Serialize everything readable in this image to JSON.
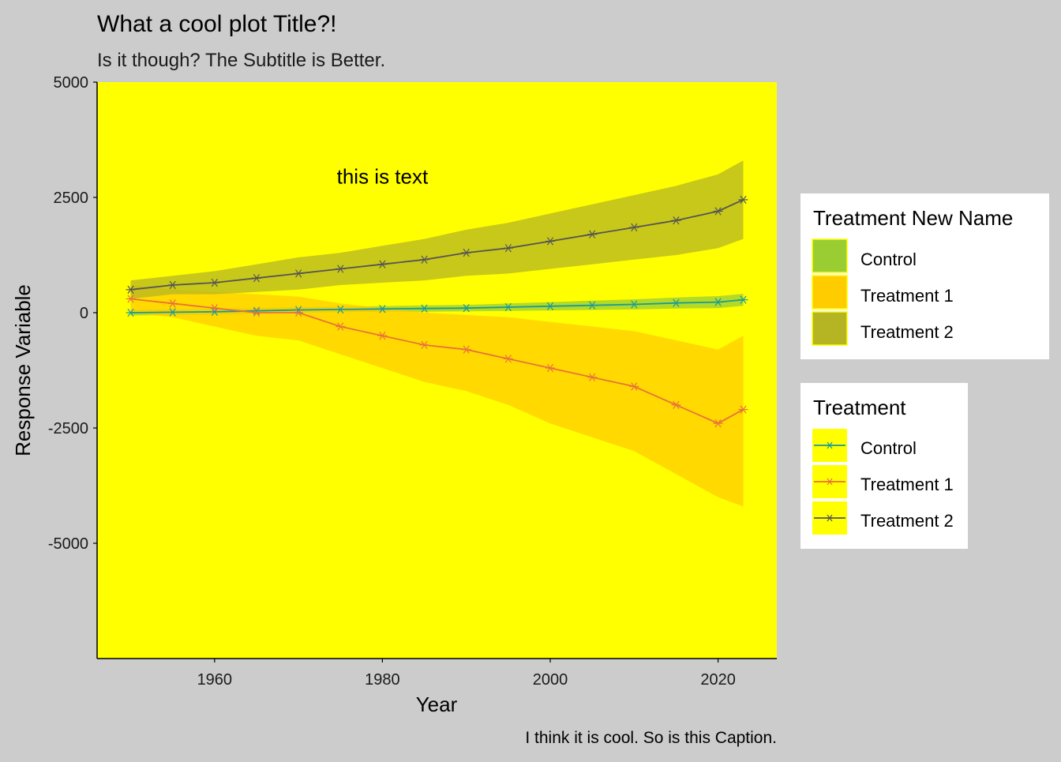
{
  "chart_data": {
    "type": "line",
    "title": "What a cool plot Title?!",
    "subtitle": "Is it though? The Subtitle is Better.",
    "caption": "I think it is cool. So is this Caption.",
    "xlabel": "Year",
    "ylabel": "Response Variable",
    "annotation": {
      "text": "this is text",
      "x": 1980,
      "y": 2950
    },
    "xlim": [
      1946,
      2027
    ],
    "ylim": [
      -7500,
      5000
    ],
    "xticks": [
      1960,
      1980,
      2000,
      2020
    ],
    "yticks": [
      5000,
      2500,
      0,
      -2500,
      -5000
    ],
    "x": [
      1950,
      1955,
      1960,
      1965,
      1970,
      1975,
      1980,
      1985,
      1990,
      1995,
      2000,
      2005,
      2010,
      2015,
      2020,
      2023
    ],
    "series": [
      {
        "name": "Control",
        "line_color": "#1a9a9a",
        "fill_color": "#9acd32",
        "values": [
          0,
          10,
          20,
          40,
          60,
          70,
          80,
          90,
          100,
          120,
          140,
          160,
          180,
          210,
          230,
          280
        ],
        "lower": [
          -60,
          -50,
          -40,
          -20,
          0,
          10,
          20,
          20,
          30,
          40,
          50,
          60,
          70,
          90,
          100,
          150
        ],
        "upper": [
          60,
          70,
          80,
          100,
          120,
          130,
          140,
          160,
          170,
          200,
          230,
          260,
          290,
          330,
          360,
          410
        ]
      },
      {
        "name": "Treatment 1",
        "line_color": "#e8733a",
        "fill_color": "#ffcc00",
        "values": [
          300,
          200,
          100,
          0,
          0,
          -300,
          -500,
          -700,
          -800,
          -1000,
          -1200,
          -1400,
          -1600,
          -2000,
          -2400,
          -2100
        ],
        "lower": [
          0,
          -100,
          -300,
          -500,
          -600,
          -900,
          -1200,
          -1500,
          -1700,
          -2000,
          -2400,
          -2700,
          -3000,
          -3500,
          -4000,
          -4200
        ],
        "upper": [
          600,
          500,
          450,
          400,
          350,
          200,
          100,
          0,
          -50,
          -100,
          -200,
          -300,
          -400,
          -600,
          -800,
          -500
        ]
      },
      {
        "name": "Treatment 2",
        "line_color": "#555555",
        "fill_color": "#b5b523",
        "values": [
          500,
          600,
          650,
          750,
          850,
          950,
          1050,
          1150,
          1300,
          1400,
          1550,
          1700,
          1850,
          2000,
          2200,
          2450
        ],
        "lower": [
          300,
          400,
          400,
          450,
          500,
          600,
          650,
          700,
          800,
          850,
          950,
          1050,
          1150,
          1250,
          1400,
          1600
        ],
        "upper": [
          700,
          800,
          900,
          1050,
          1200,
          1300,
          1450,
          1600,
          1800,
          1950,
          2150,
          2350,
          2550,
          2750,
          3000,
          3300
        ]
      }
    ],
    "legend_fill": {
      "title": "Treatment New Name",
      "placement": "right",
      "entries": [
        {
          "label": "Control",
          "color": "#9acd32"
        },
        {
          "label": "Treatment 1",
          "color": "#ffcc00"
        },
        {
          "label": "Treatment 2",
          "color": "#b5b523"
        }
      ]
    },
    "legend_color": {
      "title": "Treatment",
      "placement": "right",
      "entries": [
        {
          "label": "Control",
          "color": "#1a9a9a"
        },
        {
          "label": "Treatment 1",
          "color": "#e8733a"
        },
        {
          "label": "Treatment 2",
          "color": "#555555"
        }
      ]
    },
    "panel_background": "#ffff00",
    "plot_background": "#cccccc",
    "grid": false
  }
}
